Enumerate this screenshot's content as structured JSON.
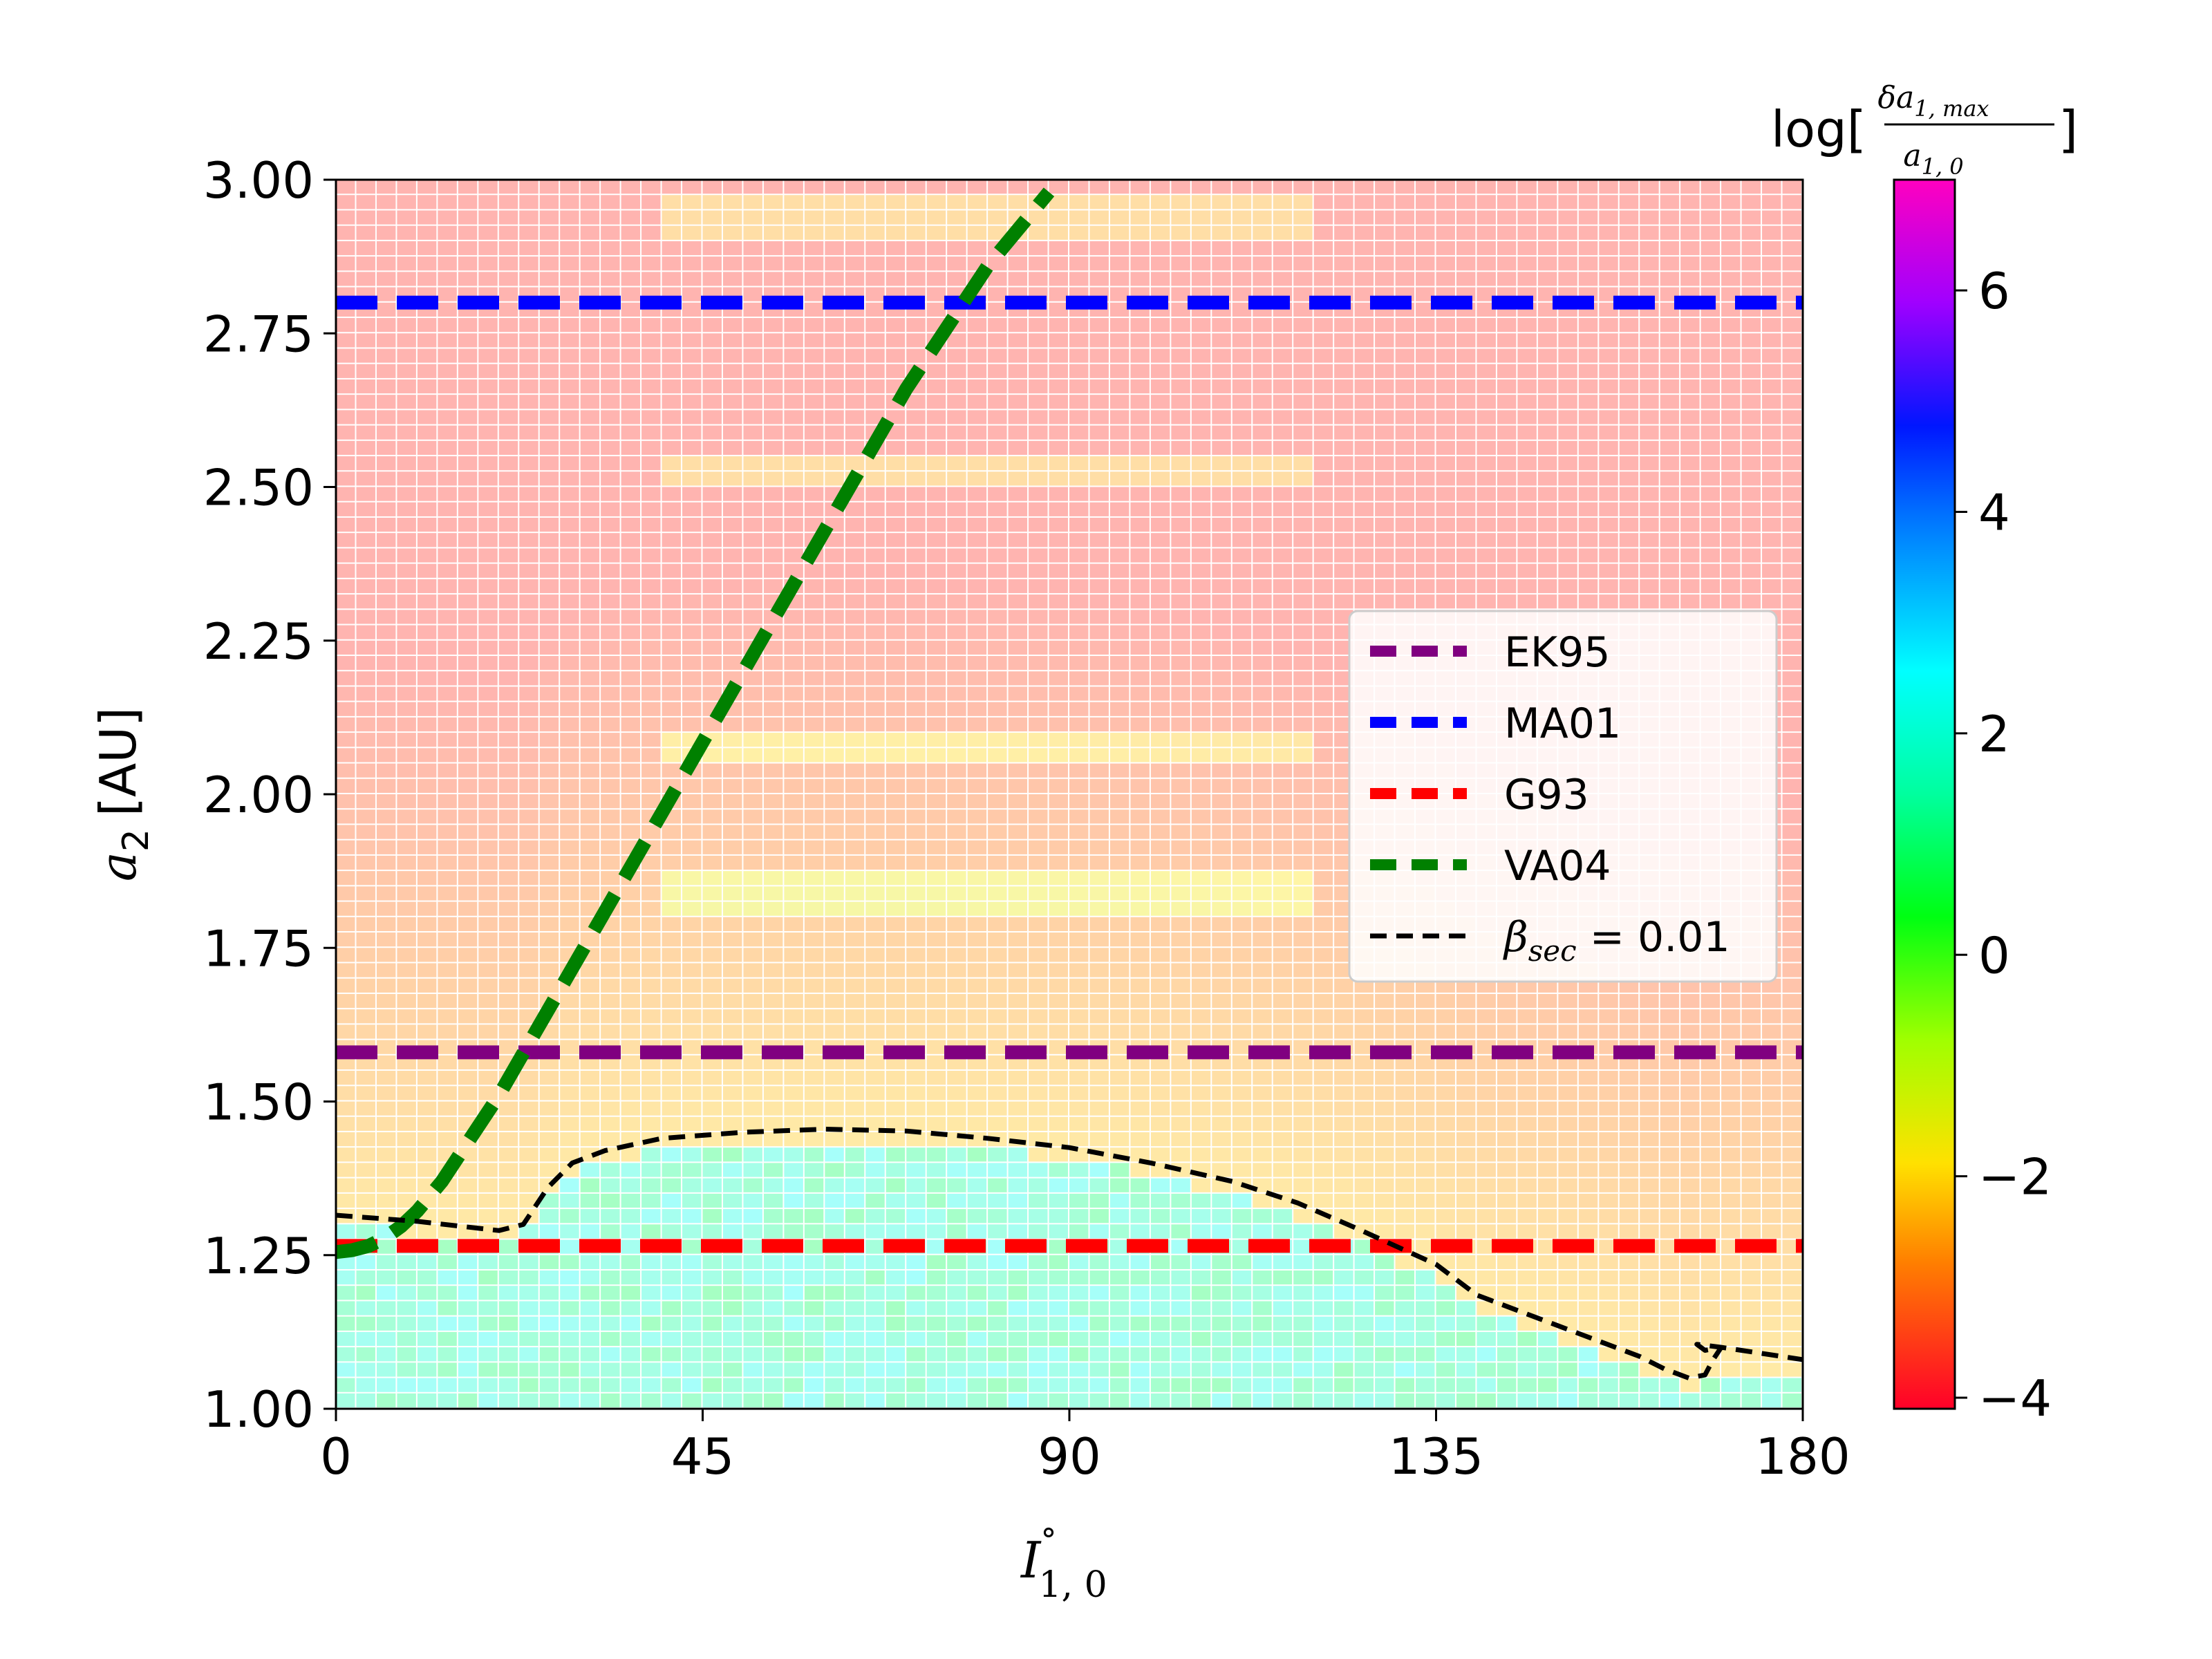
{
  "chart_data": {
    "type": "heatmap",
    "title": "",
    "xlabel": {
      "main": "I",
      "sup": "°",
      "sub": "1, 0"
    },
    "ylabel": {
      "main": "a",
      "sub": "2",
      "unit": "[AU]"
    },
    "xlim": [
      0,
      180
    ],
    "ylim": [
      1.0,
      3.0
    ],
    "x_ticks": [
      0,
      45,
      90,
      135,
      180
    ],
    "x_tick_labels": [
      "0",
      "45",
      "90",
      "135",
      "180"
    ],
    "y_ticks": [
      1.0,
      1.25,
      1.5,
      1.75,
      2.0,
      2.25,
      2.5,
      2.75,
      3.0
    ],
    "y_tick_labels": [
      "1.00",
      "1.25",
      "1.50",
      "1.75",
      "2.00",
      "2.25",
      "2.50",
      "2.75",
      "3.00"
    ],
    "colorbar": {
      "label": {
        "prefix": "log[",
        "num_main": "δa",
        "num_sub": "1, max",
        "den_main": "a",
        "den_sub": "1, 0",
        "suffix": "]"
      },
      "range": [
        -4.1,
        7.0
      ],
      "ticks": [
        -4,
        -2,
        0,
        2,
        4,
        6
      ],
      "tick_labels": [
        "−4",
        "−2",
        "0",
        "2",
        "4",
        "6"
      ],
      "colormap": "gist_rainbow_r"
    },
    "heatmap_model": {
      "description": "log10(delta a1,max / a1,0) on grid of I(1,0) x a2; high (~2) below the beta_sec curve, low (~-3.5) far above",
      "x_cells": 72,
      "y_cells": 80,
      "value_far": -3.7,
      "value_near_curve": -2.2,
      "value_unstable": 1.6,
      "bands_a2": [
        1.84,
        2.08,
        2.52,
        2.94
      ]
    },
    "series": [
      {
        "name": "EK95",
        "color": "#800080",
        "style": "dashed",
        "width": "thick",
        "x": [
          0,
          180
        ],
        "y": [
          1.58,
          1.58
        ]
      },
      {
        "name": "MA01",
        "color": "#0000ff",
        "style": "dashed",
        "width": "thick",
        "x": [
          0,
          180
        ],
        "y": [
          2.8,
          2.8
        ]
      },
      {
        "name": "G93",
        "color": "#ff0000",
        "style": "dashed",
        "width": "thick",
        "x": [
          0,
          180
        ],
        "y": [
          1.265,
          1.265
        ]
      },
      {
        "name": "VA04",
        "color": "#008000",
        "style": "dashed",
        "width": "thick",
        "x": [
          0,
          2,
          4,
          6,
          8,
          10,
          13,
          16,
          20,
          25,
          30,
          40,
          50,
          60,
          70,
          80,
          87.5
        ],
        "y": [
          1.255,
          1.258,
          1.265,
          1.278,
          1.297,
          1.322,
          1.37,
          1.43,
          1.51,
          1.625,
          1.74,
          1.97,
          2.2,
          2.43,
          2.66,
          2.86,
          2.98
        ]
      },
      {
        "name": "β_sec = 0.01",
        "label_main": "β",
        "label_sub": "sec",
        "label_rest": " = 0.01",
        "color": "#000000",
        "style": "dashed",
        "width": "thin",
        "x": [
          0,
          10,
          20,
          23,
          26,
          29,
          33,
          40,
          50,
          60,
          70,
          80,
          90,
          100,
          110,
          118,
          125,
          130,
          135,
          140,
          145,
          150,
          155,
          160,
          163,
          166,
          168,
          169,
          170,
          168,
          167,
          170,
          175,
          180
        ],
        "y": [
          1.315,
          1.305,
          1.29,
          1.3,
          1.36,
          1.4,
          1.42,
          1.44,
          1.45,
          1.455,
          1.452,
          1.44,
          1.425,
          1.4,
          1.37,
          1.335,
          1.295,
          1.265,
          1.235,
          1.185,
          1.16,
          1.135,
          1.11,
          1.085,
          1.065,
          1.05,
          1.055,
          1.08,
          1.1,
          1.095,
          1.105,
          1.1,
          1.09,
          1.08
        ]
      }
    ],
    "legend": {
      "location": "center-right",
      "entries": [
        "EK95",
        "MA01",
        "G93",
        "VA04",
        "β_sec = 0.01"
      ]
    }
  }
}
